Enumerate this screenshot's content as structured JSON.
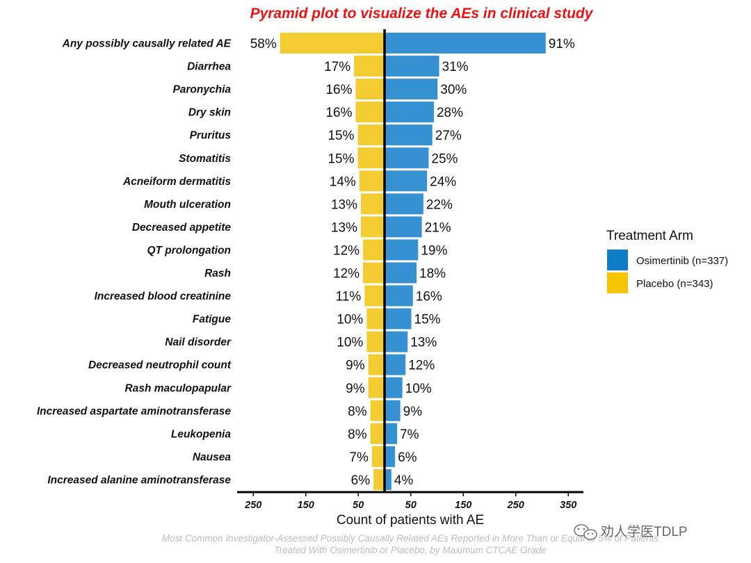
{
  "chart_data": {
    "type": "bar",
    "orientation": "horizontal-pyramid",
    "title": "Pyramid plot to visualize the AEs in clinical study",
    "xlabel": "Count of patients with AE",
    "ylabel": "",
    "xlim": [
      -250,
      350
    ],
    "xticks": [
      -250,
      -150,
      -50,
      50,
      150,
      250,
      350
    ],
    "xtick_labels": [
      "250",
      "150",
      "50",
      "50",
      "150",
      "250",
      "350"
    ],
    "categories": [
      "Any possibly causally related AE",
      "Diarrhea",
      "Paronychia",
      "Dry skin",
      "Pruritus",
      "Stomatitis",
      "Acneiform dermatitis",
      "Mouth ulceration",
      "Decreased appetite",
      "QT prolongation",
      "Rash",
      "Increased blood creatinine",
      "Fatigue",
      "Nail disorder",
      "Decreased neutrophil count",
      "Rash maculopapular",
      "Increased aspartate aminotransferase",
      "Leukopenia",
      "Nausea",
      "Increased alanine aminotransferase"
    ],
    "series": [
      {
        "name": "Placebo (n=343)",
        "side": "left",
        "color": "#F2CC30",
        "values": [
          199,
          58,
          55,
          55,
          51,
          51,
          48,
          45,
          45,
          41,
          41,
          38,
          34,
          34,
          31,
          31,
          27,
          27,
          24,
          21
        ],
        "labels": [
          "58%",
          "17%",
          "16%",
          "16%",
          "15%",
          "15%",
          "14%",
          "13%",
          "13%",
          "12%",
          "12%",
          "11%",
          "10%",
          "10%",
          "9%",
          "9%",
          "8%",
          "8%",
          "7%",
          "6%"
        ]
      },
      {
        "name": "Osimertinib (n=337)",
        "side": "right",
        "color": "#3591D1",
        "values": [
          307,
          104,
          101,
          94,
          91,
          84,
          81,
          74,
          71,
          64,
          61,
          54,
          51,
          44,
          40,
          34,
          30,
          24,
          20,
          13
        ],
        "labels": [
          "91%",
          "31%",
          "30%",
          "28%",
          "27%",
          "25%",
          "24%",
          "22%",
          "21%",
          "19%",
          "18%",
          "16%",
          "15%",
          "13%",
          "12%",
          "10%",
          "9%",
          "7%",
          "6%",
          "4%"
        ]
      }
    ],
    "legend": {
      "title": "Treatment Arm",
      "position": "right",
      "items": [
        {
          "label": "Osimertinib (n=337)",
          "color": "#0F7CC8"
        },
        {
          "label": "Placebo (n=343)",
          "color": "#F4C500"
        }
      ]
    },
    "footnote": [
      "Most Common Investigator-Assessed Possibly Causally Related AEs Reported in More Than or Equal to 5% of Patients",
      "Treated With Osimertinib or Placebo, by Maximum CTCAE Grade"
    ]
  },
  "watermark": "劝人学医TDLP"
}
